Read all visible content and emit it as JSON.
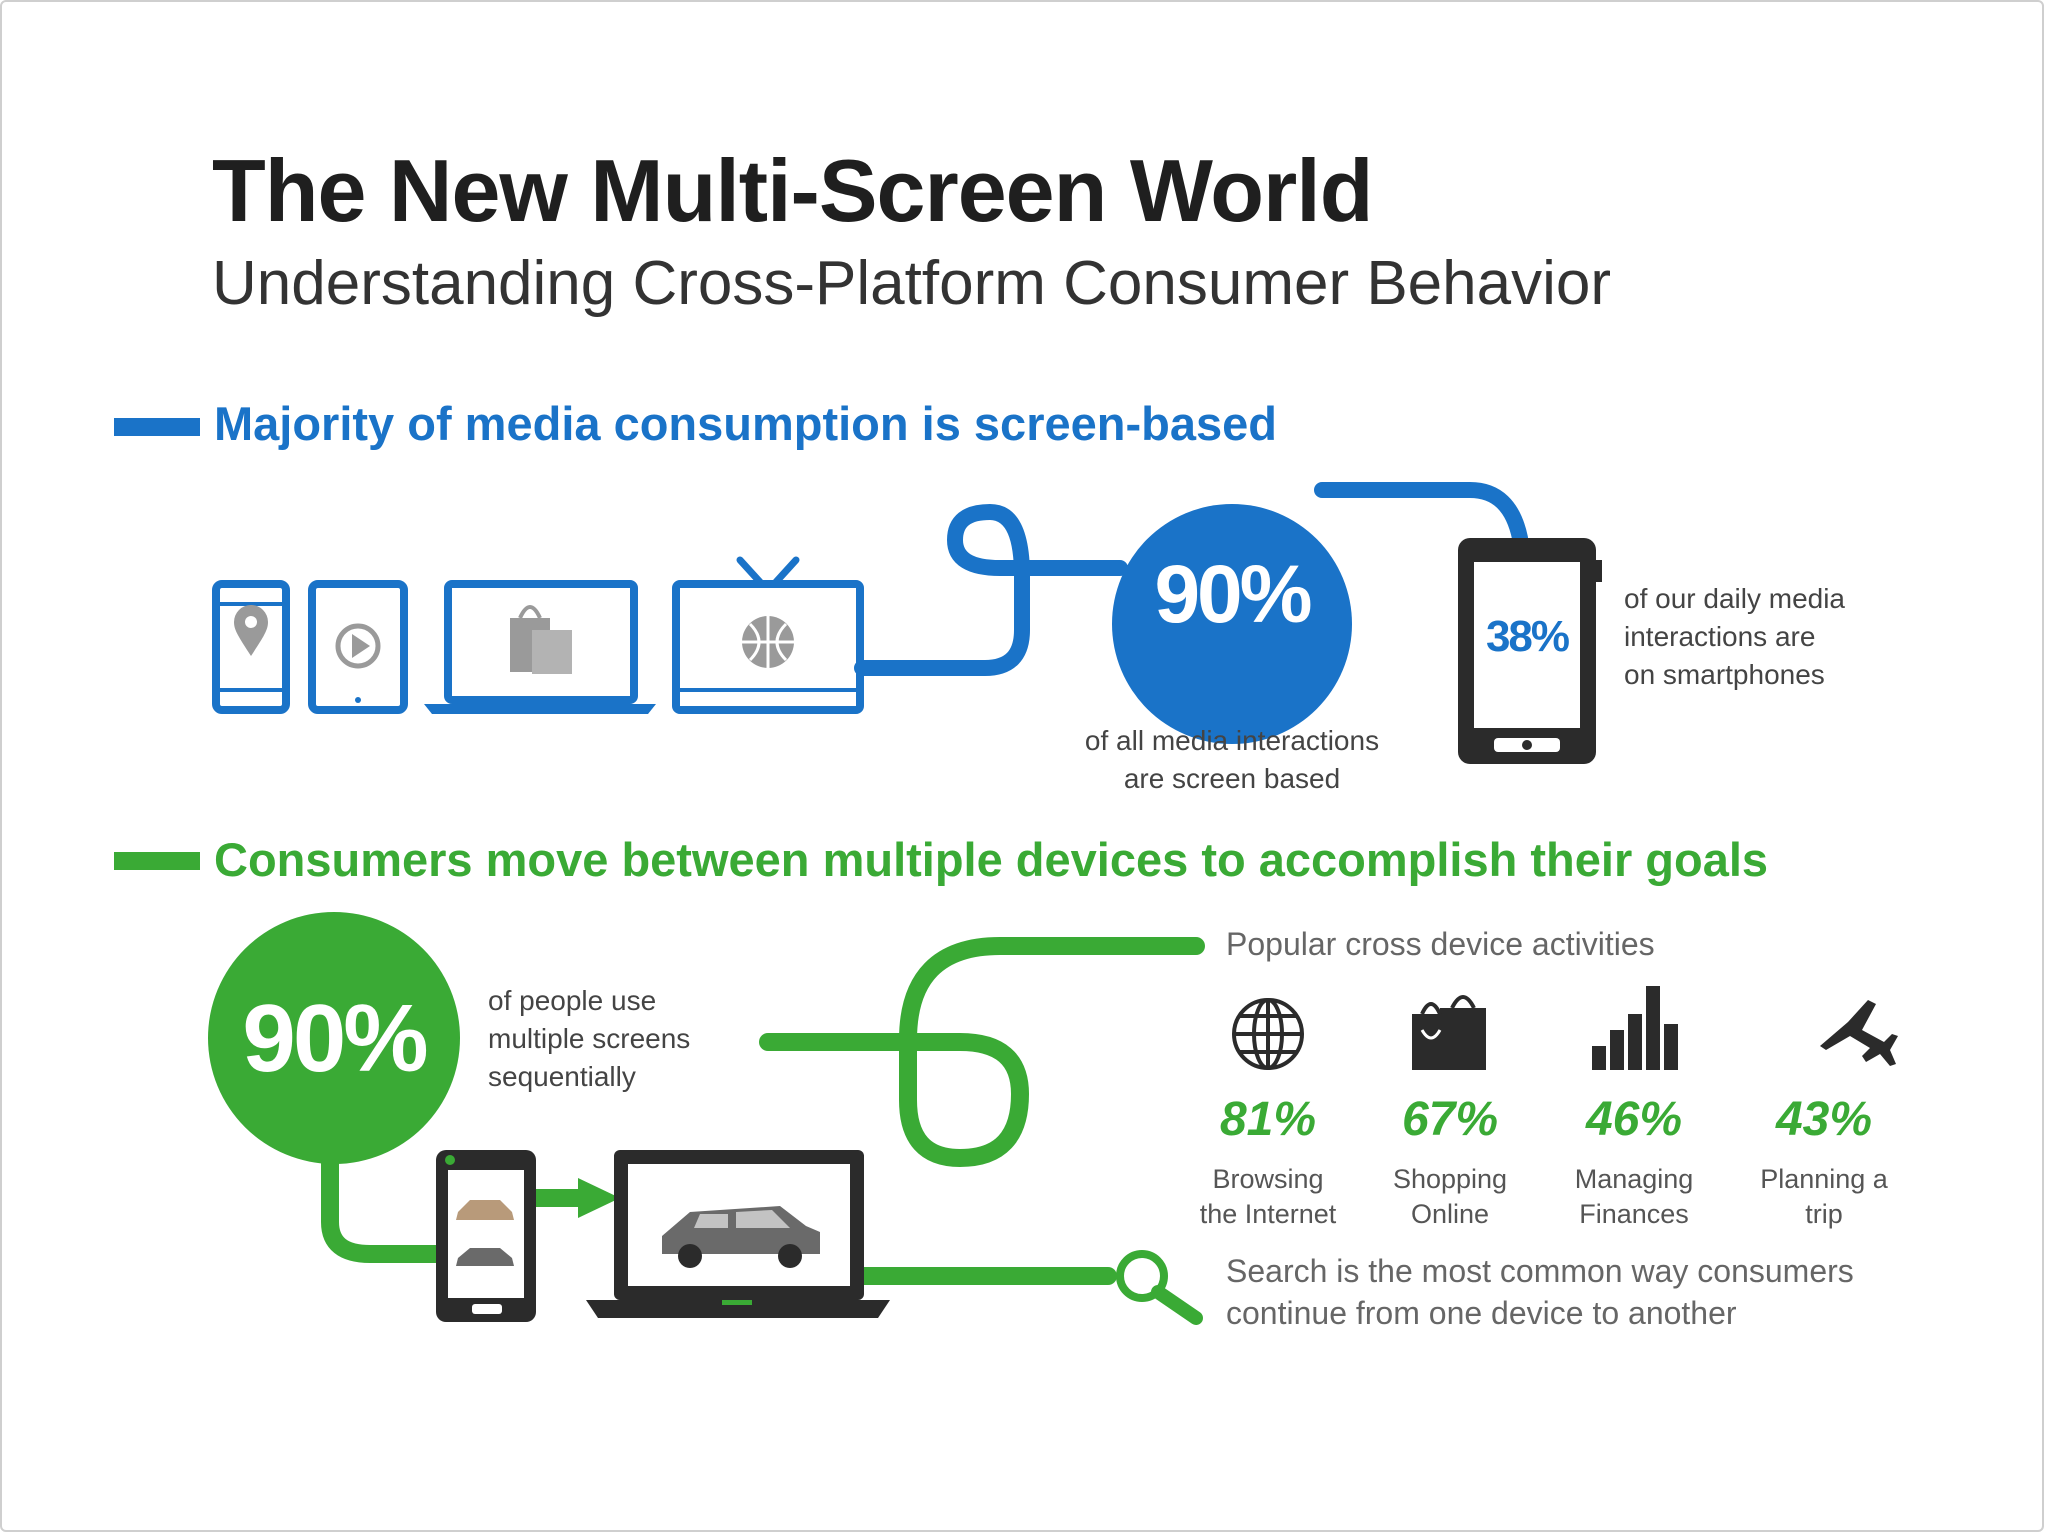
{
  "header": {
    "title": "The New Multi-Screen World",
    "subtitle": "Understanding Cross-Platform Consumer Behavior"
  },
  "colors": {
    "blue": "#1a73c8",
    "green": "#3aaa35",
    "dark": "#2b2b2b",
    "gray": "#9a9a9a"
  },
  "section1": {
    "heading": "Majority of media consumption is screen-based",
    "stat_screen": {
      "value": "90%",
      "caption_line1": "of all media interactions",
      "caption_line2": "are screen based"
    },
    "stat_smartphone": {
      "value": "38%",
      "caption_line1": "of our daily media",
      "caption_line2": "interactions are",
      "caption_line3": "on smartphones"
    },
    "devices": [
      "smartphone-map-icon",
      "tablet-play-icon",
      "laptop-shopping-bag-icon",
      "tv-basketball-icon"
    ]
  },
  "section2": {
    "heading": "Consumers move between multiple devices to accomplish their goals",
    "stat_sequential": {
      "value": "90%",
      "caption_line1": "of people use",
      "caption_line2": "multiple screens",
      "caption_line3": "sequentially"
    },
    "activities_title": "Popular cross device activities",
    "activities": [
      {
        "icon": "globe-icon",
        "pct": "81%",
        "line1": "Browsing",
        "line2": "the Internet"
      },
      {
        "icon": "shopping-bag-icon",
        "pct": "67%",
        "line1": "Shopping",
        "line2": "Online"
      },
      {
        "icon": "bar-chart-icon",
        "pct": "46%",
        "line1": "Managing",
        "line2": "Finances"
      },
      {
        "icon": "airplane-icon",
        "pct": "43%",
        "line1": "Planning a",
        "line2": "trip"
      }
    ],
    "search_note_line1": "Search is the most common way consumers",
    "search_note_line2": "continue from one device to another"
  }
}
